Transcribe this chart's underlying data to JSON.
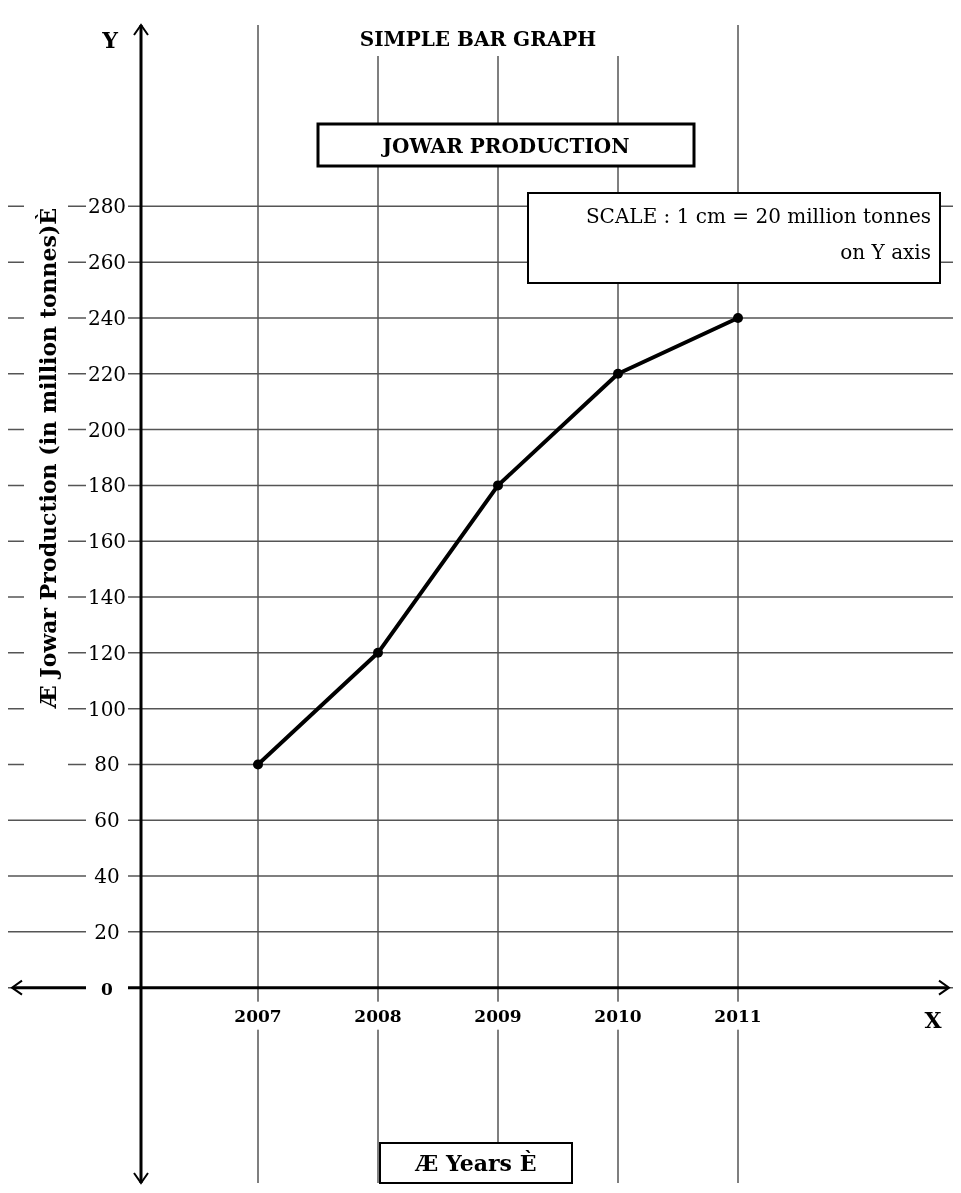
{
  "chart_data": {
    "type": "line",
    "title": "SIMPLE BAR GRAPH",
    "subtitle": "JOWAR PRODUCTION",
    "xlabel": "Æ Years È",
    "ylabel": "Æ Jowar Production (in million tonnes)È",
    "annotations": [
      "SCALE : 1 cm = 20 million tonnes on Y axis",
      "X",
      "Y"
    ],
    "categories": [
      "2007",
      "2008",
      "2009",
      "2010",
      "2011"
    ],
    "series": [
      {
        "color": "#000000",
        "values": [
          80,
          120,
          180,
          220,
          240
        ]
      }
    ],
    "ylim": [
      -70,
      345
    ],
    "yticks": [
      0,
      20,
      40,
      60,
      80,
      100,
      120,
      140,
      160,
      180,
      200,
      220,
      240,
      260,
      280
    ],
    "grid": true,
    "marker": "circle",
    "line_style": "solid"
  }
}
